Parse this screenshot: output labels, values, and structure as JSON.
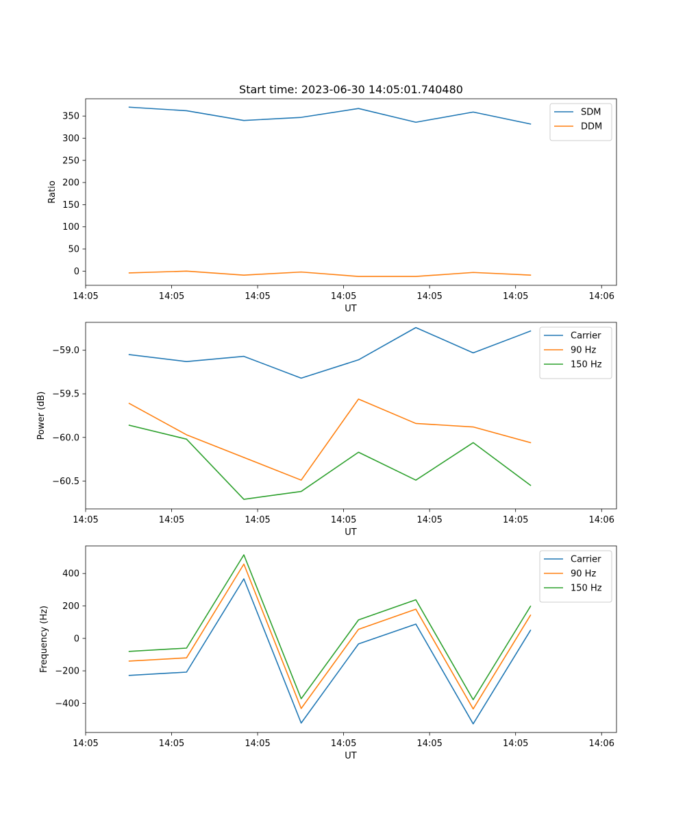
{
  "figure": {
    "title": "Start time: 2023-06-30 14:05:01.740480"
  },
  "colors": {
    "blue": "#1f77b4",
    "orange": "#ff7f0e",
    "green": "#2ca02c"
  },
  "chart_data": [
    {
      "type": "line",
      "title": "Start time: 2023-06-30 14:05:01.740480",
      "xlabel": "UT",
      "ylabel": "Ratio",
      "x": [
        "14:05:01.7",
        "14:05:02.7",
        "14:05:03.7",
        "14:05:04.7",
        "14:05:05.7",
        "14:05:06.7",
        "14:05:07.7",
        "14:05:08.7"
      ],
      "xlim": [
        -0.76,
        8.5
      ],
      "x_ticks": [
        -0.76,
        0.74,
        2.24,
        3.74,
        5.24,
        6.74,
        8.24
      ],
      "x_tick_labels": [
        "14:05",
        "14:05",
        "14:05",
        "14:05",
        "14:05",
        "14:05",
        "14:06"
      ],
      "ylim": [
        -32,
        389
      ],
      "y_ticks": [
        0,
        50,
        100,
        150,
        200,
        250,
        300,
        350
      ],
      "y_tick_labels": [
        "0",
        "50",
        "100",
        "150",
        "200",
        "250",
        "300",
        "350"
      ],
      "legend": "top-right",
      "grid": false,
      "series": [
        {
          "name": "SDM",
          "color": "#1f77b4",
          "values": [
            370,
            362,
            340,
            347,
            367,
            336,
            359,
            332
          ]
        },
        {
          "name": "DDM",
          "color": "#ff7f0e",
          "values": [
            -4,
            0,
            -9,
            -2,
            -12,
            -12,
            -3,
            -9
          ]
        }
      ]
    },
    {
      "type": "line",
      "xlabel": "UT",
      "ylabel": "Power (dB)",
      "x": [
        "14:05:01.7",
        "14:05:02.7",
        "14:05:03.7",
        "14:05:04.7",
        "14:05:05.7",
        "14:05:06.7",
        "14:05:07.7",
        "14:05:08.7"
      ],
      "xlim": [
        -0.76,
        8.5
      ],
      "x_ticks": [
        -0.76,
        0.74,
        2.24,
        3.74,
        5.24,
        6.74,
        8.24
      ],
      "x_tick_labels": [
        "14:05",
        "14:05",
        "14:05",
        "14:05",
        "14:05",
        "14:05",
        "14:06"
      ],
      "ylim": [
        -60.82,
        -58.68
      ],
      "y_ticks": [
        -60.5,
        -60.0,
        -59.5,
        -59.0
      ],
      "y_tick_labels": [
        "−60.5",
        "−60.0",
        "−59.5",
        "−59.0"
      ],
      "legend": "top-right",
      "grid": false,
      "series": [
        {
          "name": "Carrier",
          "color": "#1f77b4",
          "values": [
            -59.05,
            -59.13,
            -59.07,
            -59.32,
            -59.11,
            -58.74,
            -59.03,
            -58.78
          ]
        },
        {
          "name": "90 Hz",
          "color": "#ff7f0e",
          "values": [
            -59.61,
            -59.97,
            -60.23,
            -60.49,
            -59.56,
            -59.84,
            -59.88,
            -60.06
          ]
        },
        {
          "name": "150 Hz",
          "color": "#2ca02c",
          "values": [
            -59.86,
            -60.02,
            -60.71,
            -60.62,
            -60.17,
            -60.49,
            -60.06,
            -60.55
          ]
        }
      ]
    },
    {
      "type": "line",
      "xlabel": "UT",
      "ylabel": "Frequency (Hz)",
      "x": [
        "14:05:01.7",
        "14:05:02.7",
        "14:05:03.7",
        "14:05:04.7",
        "14:05:05.7",
        "14:05:06.7",
        "14:05:07.7",
        "14:05:08.7"
      ],
      "xlim": [
        -0.76,
        8.5
      ],
      "x_ticks": [
        -0.76,
        0.74,
        2.24,
        3.74,
        5.24,
        6.74,
        8.24
      ],
      "x_tick_labels": [
        "14:05",
        "14:05",
        "14:05",
        "14:05",
        "14:05",
        "14:05",
        "14:06"
      ],
      "ylim": [
        -580,
        570
      ],
      "y_ticks": [
        -400,
        -200,
        0,
        200,
        400
      ],
      "y_tick_labels": [
        "−400",
        "−200",
        "0",
        "200",
        "400"
      ],
      "legend": "top-right",
      "grid": false,
      "series": [
        {
          "name": "Carrier",
          "color": "#1f77b4",
          "values": [
            -228,
            -208,
            367,
            -522,
            -34,
            88,
            -527,
            50
          ]
        },
        {
          "name": "90 Hz",
          "color": "#ff7f0e",
          "values": [
            -140,
            -120,
            458,
            -432,
            56,
            180,
            -435,
            143
          ]
        },
        {
          "name": "150 Hz",
          "color": "#2ca02c",
          "values": [
            -80,
            -60,
            515,
            -372,
            114,
            238,
            -378,
            198
          ]
        }
      ]
    }
  ]
}
